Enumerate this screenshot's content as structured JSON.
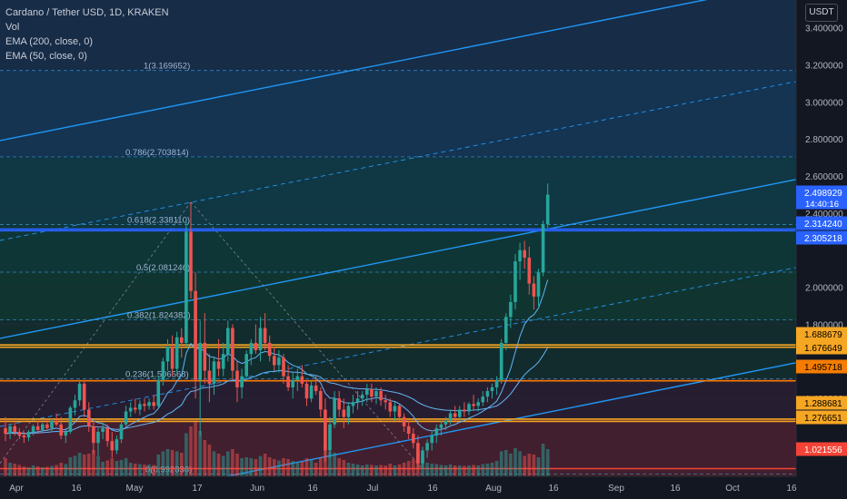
{
  "legend": {
    "title": "Cardano / Tether USD, 1D, KRAKEN",
    "vol": "Vol",
    "ema200": "EMA (200, close, 0)",
    "ema50": "EMA (50, close, 0)"
  },
  "currency_label": "USDT",
  "colors": {
    "background": "#131722",
    "up": "#26a69a",
    "down": "#ef5350",
    "fib_line": "#42a5f5",
    "channel": "#2196f3",
    "highlight_line": "#f5a623",
    "sr_red_line": "#f44336",
    "price_tag": "#2962ff"
  },
  "chart_data": {
    "type": "candlestick",
    "title": "Cardano / Tether USD, 1D, KRAKEN",
    "y_axis": {
      "ticks": [
        "3.400000",
        "3.200000",
        "3.000000",
        "2.800000",
        "2.600000",
        "2.400000",
        "2.000000",
        "1.800000",
        "1.400000"
      ],
      "range": [
        0.98,
        3.55
      ]
    },
    "x_axis": {
      "ticks": [
        "Apr",
        "16",
        "May",
        "17",
        "Jun",
        "16",
        "Jul",
        "16",
        "Aug",
        "16",
        "Sep",
        "16",
        "Oct",
        "16"
      ]
    },
    "fib_levels": [
      {
        "label": "1(3.169652)",
        "value": 3.169652
      },
      {
        "label": "0.786(2.703814)",
        "value": 2.703814
      },
      {
        "label": "0.618(2.338110)",
        "value": 2.33811
      },
      {
        "label": "0.5(2.081246)",
        "value": 2.081246
      },
      {
        "label": "0.382(1.824382)",
        "value": 1.824382
      },
      {
        "label": "0.236(1.506568)",
        "value": 1.506568
      },
      {
        "label": "0(0.992836)",
        "value": 0.992836
      }
    ],
    "price_tags": [
      {
        "label": "2.498929",
        "value": 2.498929,
        "color": "#2962ff",
        "text_color": "#ffffff"
      },
      {
        "label": "2.314240",
        "value": 2.31424,
        "color": "#2962ff",
        "text_color": "#ffffff"
      },
      {
        "label": "2.305218",
        "value": 2.305218,
        "color": "#2962ff",
        "text_color": "#ffffff"
      },
      {
        "label": "1.688679",
        "value": 1.688679,
        "color": "#f5a623",
        "text_color": "#000000"
      },
      {
        "label": "1.676649",
        "value": 1.676649,
        "color": "#f5a623",
        "text_color": "#000000"
      },
      {
        "label": "1.495718",
        "value": 1.495718,
        "color": "#f57c00",
        "text_color": "#000000"
      },
      {
        "label": "1.288681",
        "value": 1.288681,
        "color": "#f5a623",
        "text_color": "#000000"
      },
      {
        "label": "1.276651",
        "value": 1.276651,
        "color": "#f5a623",
        "text_color": "#000000"
      },
      {
        "label": "1.021556",
        "value": 1.021556,
        "color": "#f44336",
        "text_color": "#ffffff"
      }
    ],
    "countdown": "14:40:16",
    "candles": [
      {
        "o": 1.24,
        "h": 1.3,
        "l": 1.17,
        "c": 1.21,
        "v": 40
      },
      {
        "o": 1.21,
        "h": 1.26,
        "l": 1.18,
        "c": 1.25,
        "v": 30
      },
      {
        "o": 1.25,
        "h": 1.27,
        "l": 1.2,
        "c": 1.22,
        "v": 28
      },
      {
        "o": 1.22,
        "h": 1.24,
        "l": 1.18,
        "c": 1.2,
        "v": 25
      },
      {
        "o": 1.2,
        "h": 1.22,
        "l": 1.16,
        "c": 1.19,
        "v": 22
      },
      {
        "o": 1.19,
        "h": 1.23,
        "l": 1.17,
        "c": 1.22,
        "v": 20
      },
      {
        "o": 1.22,
        "h": 1.26,
        "l": 1.2,
        "c": 1.25,
        "v": 24
      },
      {
        "o": 1.25,
        "h": 1.28,
        "l": 1.21,
        "c": 1.23,
        "v": 22
      },
      {
        "o": 1.23,
        "h": 1.27,
        "l": 1.22,
        "c": 1.26,
        "v": 20
      },
      {
        "o": 1.26,
        "h": 1.29,
        "l": 1.23,
        "c": 1.24,
        "v": 21
      },
      {
        "o": 1.24,
        "h": 1.29,
        "l": 1.22,
        "c": 1.28,
        "v": 23
      },
      {
        "o": 1.28,
        "h": 1.32,
        "l": 1.25,
        "c": 1.26,
        "v": 25
      },
      {
        "o": 1.26,
        "h": 1.3,
        "l": 1.18,
        "c": 1.2,
        "v": 30
      },
      {
        "o": 1.2,
        "h": 1.24,
        "l": 1.16,
        "c": 1.22,
        "v": 27
      },
      {
        "o": 1.22,
        "h": 1.36,
        "l": 1.21,
        "c": 1.35,
        "v": 42
      },
      {
        "o": 1.35,
        "h": 1.42,
        "l": 1.31,
        "c": 1.39,
        "v": 45
      },
      {
        "o": 1.39,
        "h": 1.5,
        "l": 1.36,
        "c": 1.48,
        "v": 52
      },
      {
        "o": 1.48,
        "h": 1.49,
        "l": 1.3,
        "c": 1.34,
        "v": 48
      },
      {
        "o": 1.34,
        "h": 1.38,
        "l": 1.22,
        "c": 1.25,
        "v": 50
      },
      {
        "o": 1.25,
        "h": 1.28,
        "l": 1.1,
        "c": 1.16,
        "v": 58
      },
      {
        "o": 1.16,
        "h": 1.24,
        "l": 1.09,
        "c": 1.22,
        "v": 45
      },
      {
        "o": 1.22,
        "h": 1.27,
        "l": 1.18,
        "c": 1.24,
        "v": 32
      },
      {
        "o": 1.24,
        "h": 1.26,
        "l": 1.14,
        "c": 1.17,
        "v": 35
      },
      {
        "o": 1.17,
        "h": 1.22,
        "l": 1.08,
        "c": 1.12,
        "v": 40
      },
      {
        "o": 1.12,
        "h": 1.2,
        "l": 1.1,
        "c": 1.18,
        "v": 34
      },
      {
        "o": 1.18,
        "h": 1.28,
        "l": 1.16,
        "c": 1.26,
        "v": 36
      },
      {
        "o": 1.26,
        "h": 1.36,
        "l": 1.25,
        "c": 1.33,
        "v": 40
      },
      {
        "o": 1.33,
        "h": 1.38,
        "l": 1.3,
        "c": 1.35,
        "v": 30
      },
      {
        "o": 1.35,
        "h": 1.4,
        "l": 1.32,
        "c": 1.34,
        "v": 28
      },
      {
        "o": 1.34,
        "h": 1.39,
        "l": 1.31,
        "c": 1.37,
        "v": 27
      },
      {
        "o": 1.37,
        "h": 1.4,
        "l": 1.33,
        "c": 1.36,
        "v": 26
      },
      {
        "o": 1.36,
        "h": 1.4,
        "l": 1.34,
        "c": 1.38,
        "v": 26
      },
      {
        "o": 1.38,
        "h": 1.42,
        "l": 1.34,
        "c": 1.36,
        "v": 25
      },
      {
        "o": 1.36,
        "h": 1.52,
        "l": 1.35,
        "c": 1.5,
        "v": 48
      },
      {
        "o": 1.5,
        "h": 1.62,
        "l": 1.47,
        "c": 1.6,
        "v": 55
      },
      {
        "o": 1.6,
        "h": 1.72,
        "l": 1.55,
        "c": 1.68,
        "v": 60
      },
      {
        "o": 1.68,
        "h": 1.74,
        "l": 1.52,
        "c": 1.56,
        "v": 58
      },
      {
        "o": 1.56,
        "h": 1.76,
        "l": 1.54,
        "c": 1.73,
        "v": 55
      },
      {
        "o": 1.73,
        "h": 1.78,
        "l": 1.62,
        "c": 1.7,
        "v": 52
      },
      {
        "o": 1.7,
        "h": 2.36,
        "l": 1.68,
        "c": 2.3,
        "v": 95
      },
      {
        "o": 2.3,
        "h": 2.46,
        "l": 1.94,
        "c": 1.98,
        "v": 110
      },
      {
        "o": 1.98,
        "h": 2.08,
        "l": 1.4,
        "c": 1.5,
        "v": 120
      },
      {
        "o": 1.5,
        "h": 1.82,
        "l": 1.2,
        "c": 1.7,
        "v": 100
      },
      {
        "o": 1.7,
        "h": 1.86,
        "l": 1.48,
        "c": 1.55,
        "v": 80
      },
      {
        "o": 1.55,
        "h": 1.64,
        "l": 1.38,
        "c": 1.48,
        "v": 70
      },
      {
        "o": 1.48,
        "h": 1.62,
        "l": 1.42,
        "c": 1.6,
        "v": 55
      },
      {
        "o": 1.6,
        "h": 1.72,
        "l": 1.52,
        "c": 1.56,
        "v": 50
      },
      {
        "o": 1.56,
        "h": 1.7,
        "l": 1.52,
        "c": 1.64,
        "v": 45
      },
      {
        "o": 1.64,
        "h": 1.82,
        "l": 1.6,
        "c": 1.78,
        "v": 55
      },
      {
        "o": 1.78,
        "h": 1.8,
        "l": 1.5,
        "c": 1.55,
        "v": 60
      },
      {
        "o": 1.55,
        "h": 1.6,
        "l": 1.38,
        "c": 1.46,
        "v": 50
      },
      {
        "o": 1.46,
        "h": 1.56,
        "l": 1.4,
        "c": 1.52,
        "v": 40
      },
      {
        "o": 1.52,
        "h": 1.66,
        "l": 1.5,
        "c": 1.64,
        "v": 42
      },
      {
        "o": 1.64,
        "h": 1.72,
        "l": 1.58,
        "c": 1.7,
        "v": 40
      },
      {
        "o": 1.7,
        "h": 1.8,
        "l": 1.64,
        "c": 1.66,
        "v": 38
      },
      {
        "o": 1.66,
        "h": 1.84,
        "l": 1.6,
        "c": 1.78,
        "v": 45
      },
      {
        "o": 1.78,
        "h": 1.86,
        "l": 1.66,
        "c": 1.7,
        "v": 50
      },
      {
        "o": 1.7,
        "h": 1.74,
        "l": 1.6,
        "c": 1.63,
        "v": 42
      },
      {
        "o": 1.63,
        "h": 1.68,
        "l": 1.55,
        "c": 1.58,
        "v": 38
      },
      {
        "o": 1.58,
        "h": 1.66,
        "l": 1.54,
        "c": 1.62,
        "v": 35
      },
      {
        "o": 1.62,
        "h": 1.64,
        "l": 1.48,
        "c": 1.52,
        "v": 40
      },
      {
        "o": 1.52,
        "h": 1.58,
        "l": 1.44,
        "c": 1.46,
        "v": 38
      },
      {
        "o": 1.46,
        "h": 1.54,
        "l": 1.4,
        "c": 1.5,
        "v": 34
      },
      {
        "o": 1.5,
        "h": 1.56,
        "l": 1.44,
        "c": 1.52,
        "v": 30
      },
      {
        "o": 1.52,
        "h": 1.58,
        "l": 1.46,
        "c": 1.48,
        "v": 32
      },
      {
        "o": 1.48,
        "h": 1.5,
        "l": 1.36,
        "c": 1.4,
        "v": 40
      },
      {
        "o": 1.4,
        "h": 1.5,
        "l": 1.38,
        "c": 1.47,
        "v": 36
      },
      {
        "o": 1.47,
        "h": 1.52,
        "l": 1.42,
        "c": 1.44,
        "v": 30
      },
      {
        "o": 1.44,
        "h": 1.46,
        "l": 1.3,
        "c": 1.34,
        "v": 42
      },
      {
        "o": 1.34,
        "h": 1.4,
        "l": 1.06,
        "c": 1.12,
        "v": 70
      },
      {
        "o": 1.12,
        "h": 1.3,
        "l": 1.08,
        "c": 1.26,
        "v": 55
      },
      {
        "o": 1.26,
        "h": 1.44,
        "l": 1.24,
        "c": 1.4,
        "v": 52
      },
      {
        "o": 1.4,
        "h": 1.44,
        "l": 1.3,
        "c": 1.34,
        "v": 40
      },
      {
        "o": 1.34,
        "h": 1.4,
        "l": 1.24,
        "c": 1.3,
        "v": 36
      },
      {
        "o": 1.3,
        "h": 1.38,
        "l": 1.26,
        "c": 1.36,
        "v": 30
      },
      {
        "o": 1.36,
        "h": 1.42,
        "l": 1.32,
        "c": 1.38,
        "v": 28
      },
      {
        "o": 1.38,
        "h": 1.44,
        "l": 1.34,
        "c": 1.4,
        "v": 26
      },
      {
        "o": 1.4,
        "h": 1.44,
        "l": 1.36,
        "c": 1.42,
        "v": 24
      },
      {
        "o": 1.42,
        "h": 1.48,
        "l": 1.38,
        "c": 1.45,
        "v": 26
      },
      {
        "o": 1.45,
        "h": 1.48,
        "l": 1.38,
        "c": 1.41,
        "v": 25
      },
      {
        "o": 1.41,
        "h": 1.46,
        "l": 1.37,
        "c": 1.44,
        "v": 24
      },
      {
        "o": 1.44,
        "h": 1.46,
        "l": 1.36,
        "c": 1.39,
        "v": 25
      },
      {
        "o": 1.39,
        "h": 1.42,
        "l": 1.34,
        "c": 1.38,
        "v": 24
      },
      {
        "o": 1.38,
        "h": 1.4,
        "l": 1.3,
        "c": 1.33,
        "v": 28
      },
      {
        "o": 1.33,
        "h": 1.38,
        "l": 1.28,
        "c": 1.36,
        "v": 24
      },
      {
        "o": 1.36,
        "h": 1.37,
        "l": 1.28,
        "c": 1.3,
        "v": 26
      },
      {
        "o": 1.3,
        "h": 1.32,
        "l": 1.22,
        "c": 1.25,
        "v": 30
      },
      {
        "o": 1.25,
        "h": 1.28,
        "l": 1.18,
        "c": 1.21,
        "v": 34
      },
      {
        "o": 1.21,
        "h": 1.24,
        "l": 1.13,
        "c": 1.16,
        "v": 38
      },
      {
        "o": 1.16,
        "h": 1.2,
        "l": 1.02,
        "c": 1.05,
        "v": 55
      },
      {
        "o": 1.05,
        "h": 1.14,
        "l": 1.02,
        "c": 1.12,
        "v": 40
      },
      {
        "o": 1.12,
        "h": 1.18,
        "l": 1.08,
        "c": 1.16,
        "v": 30
      },
      {
        "o": 1.16,
        "h": 1.22,
        "l": 1.12,
        "c": 1.2,
        "v": 28
      },
      {
        "o": 1.2,
        "h": 1.26,
        "l": 1.16,
        "c": 1.24,
        "v": 27
      },
      {
        "o": 1.24,
        "h": 1.28,
        "l": 1.2,
        "c": 1.26,
        "v": 25
      },
      {
        "o": 1.26,
        "h": 1.3,
        "l": 1.23,
        "c": 1.28,
        "v": 24
      },
      {
        "o": 1.28,
        "h": 1.34,
        "l": 1.26,
        "c": 1.32,
        "v": 26
      },
      {
        "o": 1.32,
        "h": 1.36,
        "l": 1.28,
        "c": 1.3,
        "v": 24
      },
      {
        "o": 1.3,
        "h": 1.36,
        "l": 1.28,
        "c": 1.34,
        "v": 24
      },
      {
        "o": 1.34,
        "h": 1.38,
        "l": 1.3,
        "c": 1.33,
        "v": 23
      },
      {
        "o": 1.33,
        "h": 1.38,
        "l": 1.31,
        "c": 1.37,
        "v": 24
      },
      {
        "o": 1.37,
        "h": 1.42,
        "l": 1.34,
        "c": 1.36,
        "v": 25
      },
      {
        "o": 1.36,
        "h": 1.4,
        "l": 1.33,
        "c": 1.38,
        "v": 24
      },
      {
        "o": 1.38,
        "h": 1.44,
        "l": 1.36,
        "c": 1.41,
        "v": 27
      },
      {
        "o": 1.41,
        "h": 1.46,
        "l": 1.38,
        "c": 1.44,
        "v": 28
      },
      {
        "o": 1.44,
        "h": 1.48,
        "l": 1.4,
        "c": 1.46,
        "v": 30
      },
      {
        "o": 1.46,
        "h": 1.52,
        "l": 1.42,
        "c": 1.5,
        "v": 34
      },
      {
        "o": 1.5,
        "h": 1.72,
        "l": 1.48,
        "c": 1.7,
        "v": 55
      },
      {
        "o": 1.7,
        "h": 1.86,
        "l": 1.66,
        "c": 1.84,
        "v": 58
      },
      {
        "o": 1.84,
        "h": 1.96,
        "l": 1.78,
        "c": 1.92,
        "v": 50
      },
      {
        "o": 1.92,
        "h": 2.18,
        "l": 1.88,
        "c": 2.14,
        "v": 62
      },
      {
        "o": 2.14,
        "h": 2.24,
        "l": 2.04,
        "c": 2.2,
        "v": 55
      },
      {
        "o": 2.2,
        "h": 2.25,
        "l": 2.1,
        "c": 2.16,
        "v": 45
      },
      {
        "o": 2.16,
        "h": 2.22,
        "l": 1.96,
        "c": 2.02,
        "v": 50
      },
      {
        "o": 2.02,
        "h": 2.06,
        "l": 1.88,
        "c": 1.95,
        "v": 48
      },
      {
        "o": 1.95,
        "h": 2.1,
        "l": 1.9,
        "c": 2.08,
        "v": 42
      },
      {
        "o": 2.08,
        "h": 2.36,
        "l": 2.06,
        "c": 2.34,
        "v": 72
      },
      {
        "o": 2.34,
        "h": 2.56,
        "l": 2.32,
        "c": 2.5,
        "v": 60
      }
    ]
  }
}
